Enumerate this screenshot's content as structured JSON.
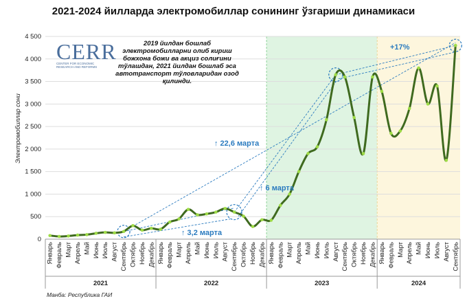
{
  "title": "2021-2024 йилларда электромобиллар сонининг ўзгариши динамикаси",
  "source": "Манба: Республика ГАИ",
  "logo": {
    "brand": "CERR",
    "sub": "CENTER FOR ECONOMIC RESEARCH AND REFORMS"
  },
  "note": "2019 йилдан бошлаб электромобилларни олиб кириш божхона божи ва акциз солиғини тўлашдан, 2021 йилдан бошлаб эса автотранспорт тўловларидан озод қилинди.",
  "colors": {
    "line": "#3f6a1f",
    "marker": "#9fdc47",
    "highlight2023": "#dff4e2",
    "highlight2024": "#fdf6dd",
    "annotation": "#2b7bbf"
  },
  "chart_data": {
    "type": "line",
    "title": "2021-2024 йилларда электромобиллар сонининг ўзгариши динамикаси",
    "xlabel": "",
    "ylabel": "Электромобиллар сони",
    "ylim": [
      0,
      4500
    ],
    "yticks": [
      "0",
      "500",
      "1 000",
      "1 500",
      "2 000",
      "2 500",
      "3 000",
      "3 500",
      "4 000",
      "4 500"
    ],
    "grid": true,
    "years": [
      {
        "label": "2021",
        "count": 12
      },
      {
        "label": "2022",
        "count": 12
      },
      {
        "label": "2023",
        "count": 12
      },
      {
        "label": "2024",
        "count": 9
      }
    ],
    "categories": [
      "Январь",
      "Февраль",
      "Март",
      "Апрель",
      "Май",
      "Июнь",
      "Июль",
      "Август",
      "Сентябрь",
      "Октябрь",
      "Ноябрь",
      "Декабрь",
      "Январь",
      "Февраль",
      "Март",
      "Апрель",
      "Май",
      "Июнь",
      "Июль",
      "Август",
      "Сентябрь",
      "Октябрь",
      "Ноябрь",
      "Декабрь",
      "Январь",
      "Февраль",
      "Март",
      "Апрель",
      "Май",
      "Июнь",
      "Июль",
      "Август",
      "Сентябрь",
      "Октябрь",
      "Ноябрь",
      "Декабрь",
      "Январь",
      "Февраль",
      "Март",
      "Апрель",
      "Май",
      "Июнь",
      "Июль",
      "Август",
      "Сентябрь"
    ],
    "values": [
      80,
      60,
      70,
      90,
      100,
      130,
      150,
      140,
      170,
      300,
      200,
      240,
      220,
      380,
      450,
      660,
      540,
      560,
      600,
      680,
      600,
      510,
      280,
      430,
      420,
      750,
      1000,
      1500,
      1900,
      2050,
      2650,
      3650,
      3600,
      2700,
      1900,
      3600,
      3280,
      2350,
      2400,
      2900,
      3800,
      3000,
      3400,
      1750,
      4300
    ],
    "annotations": [
      {
        "text": "↑ 22,6 марта"
      },
      {
        "text": "↑ 6 марта"
      },
      {
        "text": "↑ 3,2 марта"
      },
      {
        "text": "+17%"
      }
    ]
  }
}
